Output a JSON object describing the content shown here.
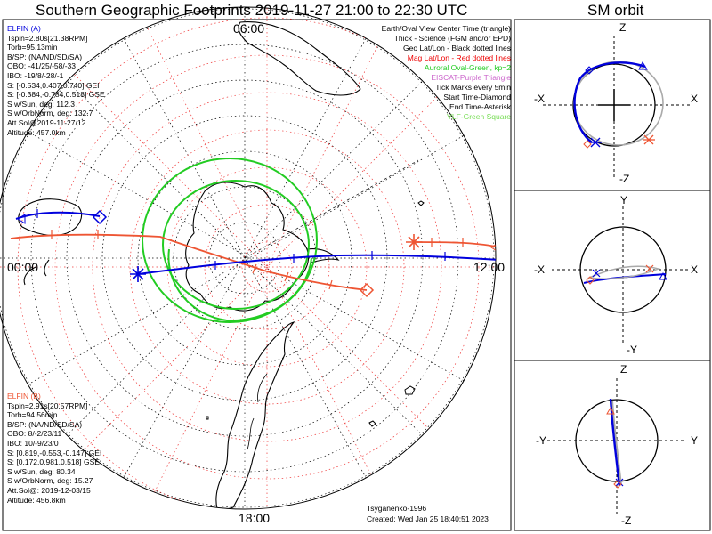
{
  "title": "Southern Geographic Footprints 2019-11-27 21:00 to 22:30 UTC",
  "sm_title": "SM orbit",
  "elfin_a": {
    "header": "ELFIN (A)",
    "color": "#0000dd",
    "lines": [
      "Tspin=2.80s[21.38RPM]",
      "Torb=95.13min",
      "B/SP: (NA/ND/SD/SA)",
      "OBO: -41/25/-58/-33",
      "IBO: -19/8/-28/-1",
      "S: [-0.534,0.407,0.740] GEI",
      "S: [-0.384,-0.784,0.518] GSE",
      "S w/Sun, deg: 112.3",
      "S w/OrbNorm, deg: 132.7",
      "Att.Sol@2019-11-27/12",
      "Altitude: 457.0km"
    ]
  },
  "elfin_b": {
    "header": "ELFIN (B)",
    "color": "#ee5533",
    "lines": [
      "Tspin=2.91s[20.57RPM]",
      "Torb=94.56min",
      "B/SP: (NA/ND/SD/SA)",
      "OBO: 8/-2/23/11",
      "IBO: 10/-9/23/0",
      "S: [0.819,-0.553,-0.147] GEI",
      "S: [0.172,0.981,0.518] GSE",
      "S w/Sun, deg: 80.34",
      "S w/OrbNorm, deg: 15.27",
      "Att.Sol@: 2019-12-03/15",
      "Altitude: 456.8km"
    ]
  },
  "legend": [
    {
      "text": "Earth/Oval View Center Time (triangle)",
      "color": "#000000"
    },
    {
      "text": "Thick - Science (FGM and/or EPD)",
      "color": "#000000"
    },
    {
      "text": "Geo Lat/Lon - Black dotted lines",
      "color": "#000000"
    },
    {
      "text": "Mag Lat/Lon - Red dotted lines",
      "color": "#ee0000"
    },
    {
      "text": "Auroral Oval-Green, kp=2",
      "color": "#22cc22"
    },
    {
      "text": "EISCAT-Purple Triangle",
      "color": "#cc66cc"
    },
    {
      "text": "Tick Marks every 5min",
      "color": "#000000"
    },
    {
      "text": "Start Time-Diamond",
      "color": "#000000"
    },
    {
      "text": "End Time-Asterisk",
      "color": "#000000"
    },
    {
      "text": "VLF-Green Square",
      "color": "#77dd55"
    }
  ],
  "hour_labels": {
    "top": "06:00",
    "left": "00:00",
    "right": "12:00",
    "bottom": "18:00"
  },
  "credit": {
    "author": "Tsyganenko-1996",
    "created": "Created: Wed Jan 25 18:40:51 2023"
  },
  "sm_panels": [
    {
      "up": "Z",
      "down": "-Z",
      "left": "-X",
      "right": "X"
    },
    {
      "up": "Y",
      "down": "-Y",
      "left": "-X",
      "right": "X"
    },
    {
      "up": "Z",
      "down": "-Z",
      "left": "-Y",
      "right": "Y"
    }
  ],
  "colors": {
    "elfin_a": "#0000dd",
    "elfin_b": "#ee5533",
    "oval": "#22cc22",
    "geo_grid": "#000000",
    "mag_grid": "#ee3333"
  }
}
